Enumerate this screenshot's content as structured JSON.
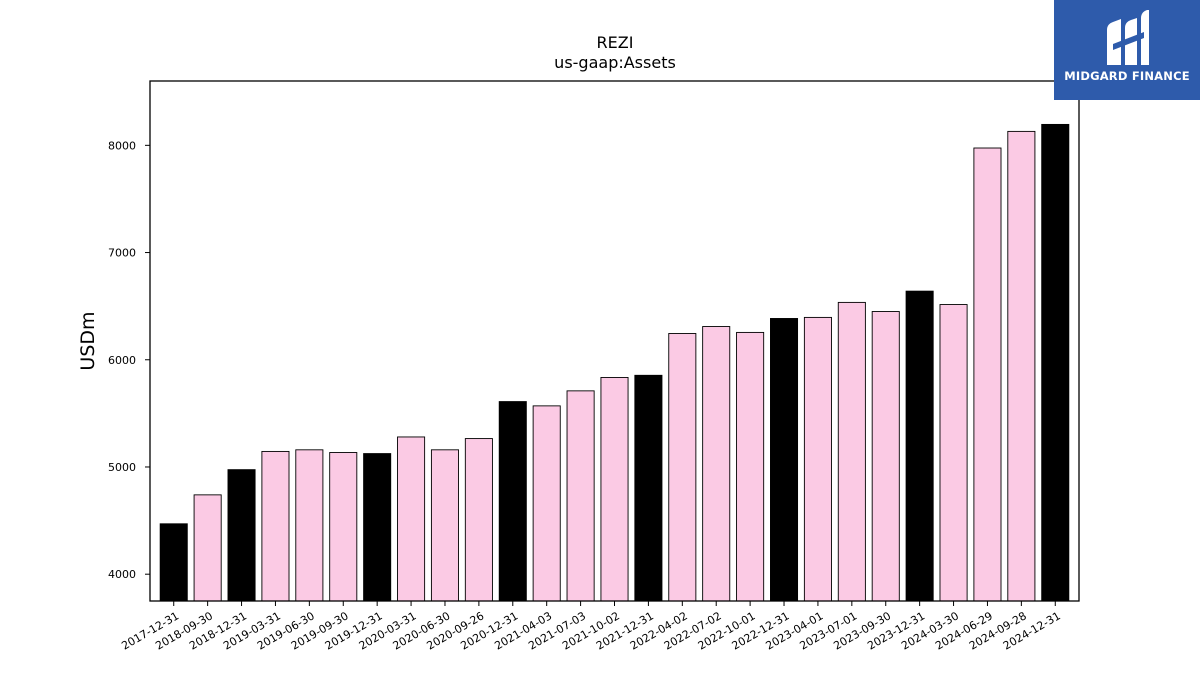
{
  "brand": {
    "name": "MIDGARD FINANCE",
    "logo_icon": "midgard-m-icon",
    "background_color": "#2e5bab"
  },
  "colors": {
    "year_end_bar": "#000000",
    "quarter_bar": "#fbcae4",
    "bar_edge": "#000000"
  },
  "chart_data": {
    "type": "bar",
    "title": "REZI",
    "subtitle": "us-gaap:Assets",
    "xlabel": "",
    "ylabel": "USDm",
    "ylim": [
      3750,
      8600
    ],
    "yticks": [
      4000,
      5000,
      6000,
      7000,
      8000
    ],
    "grid": false,
    "legend": "none",
    "categories": [
      "2017-12-31",
      "2018-09-30",
      "2018-12-31",
      "2019-03-31",
      "2019-06-30",
      "2019-09-30",
      "2019-12-31",
      "2020-03-31",
      "2020-06-30",
      "2020-09-26",
      "2020-12-31",
      "2021-04-03",
      "2021-07-03",
      "2021-10-02",
      "2021-12-31",
      "2022-04-02",
      "2022-07-02",
      "2022-10-01",
      "2022-12-31",
      "2023-04-01",
      "2023-07-01",
      "2023-09-30",
      "2023-12-31",
      "2024-03-30",
      "2024-06-29",
      "2024-09-28",
      "2024-12-31"
    ],
    "values": [
      4470,
      4740,
      4975,
      5145,
      5160,
      5135,
      5125,
      5280,
      5160,
      5265,
      5610,
      5570,
      5710,
      5835,
      5855,
      6245,
      6310,
      6255,
      6385,
      6395,
      6535,
      6450,
      6640,
      6515,
      7975,
      8130,
      8195
    ],
    "year_end": [
      true,
      false,
      true,
      false,
      false,
      false,
      true,
      false,
      false,
      false,
      true,
      false,
      false,
      false,
      true,
      false,
      false,
      false,
      true,
      false,
      false,
      false,
      true,
      false,
      false,
      false,
      true
    ]
  }
}
